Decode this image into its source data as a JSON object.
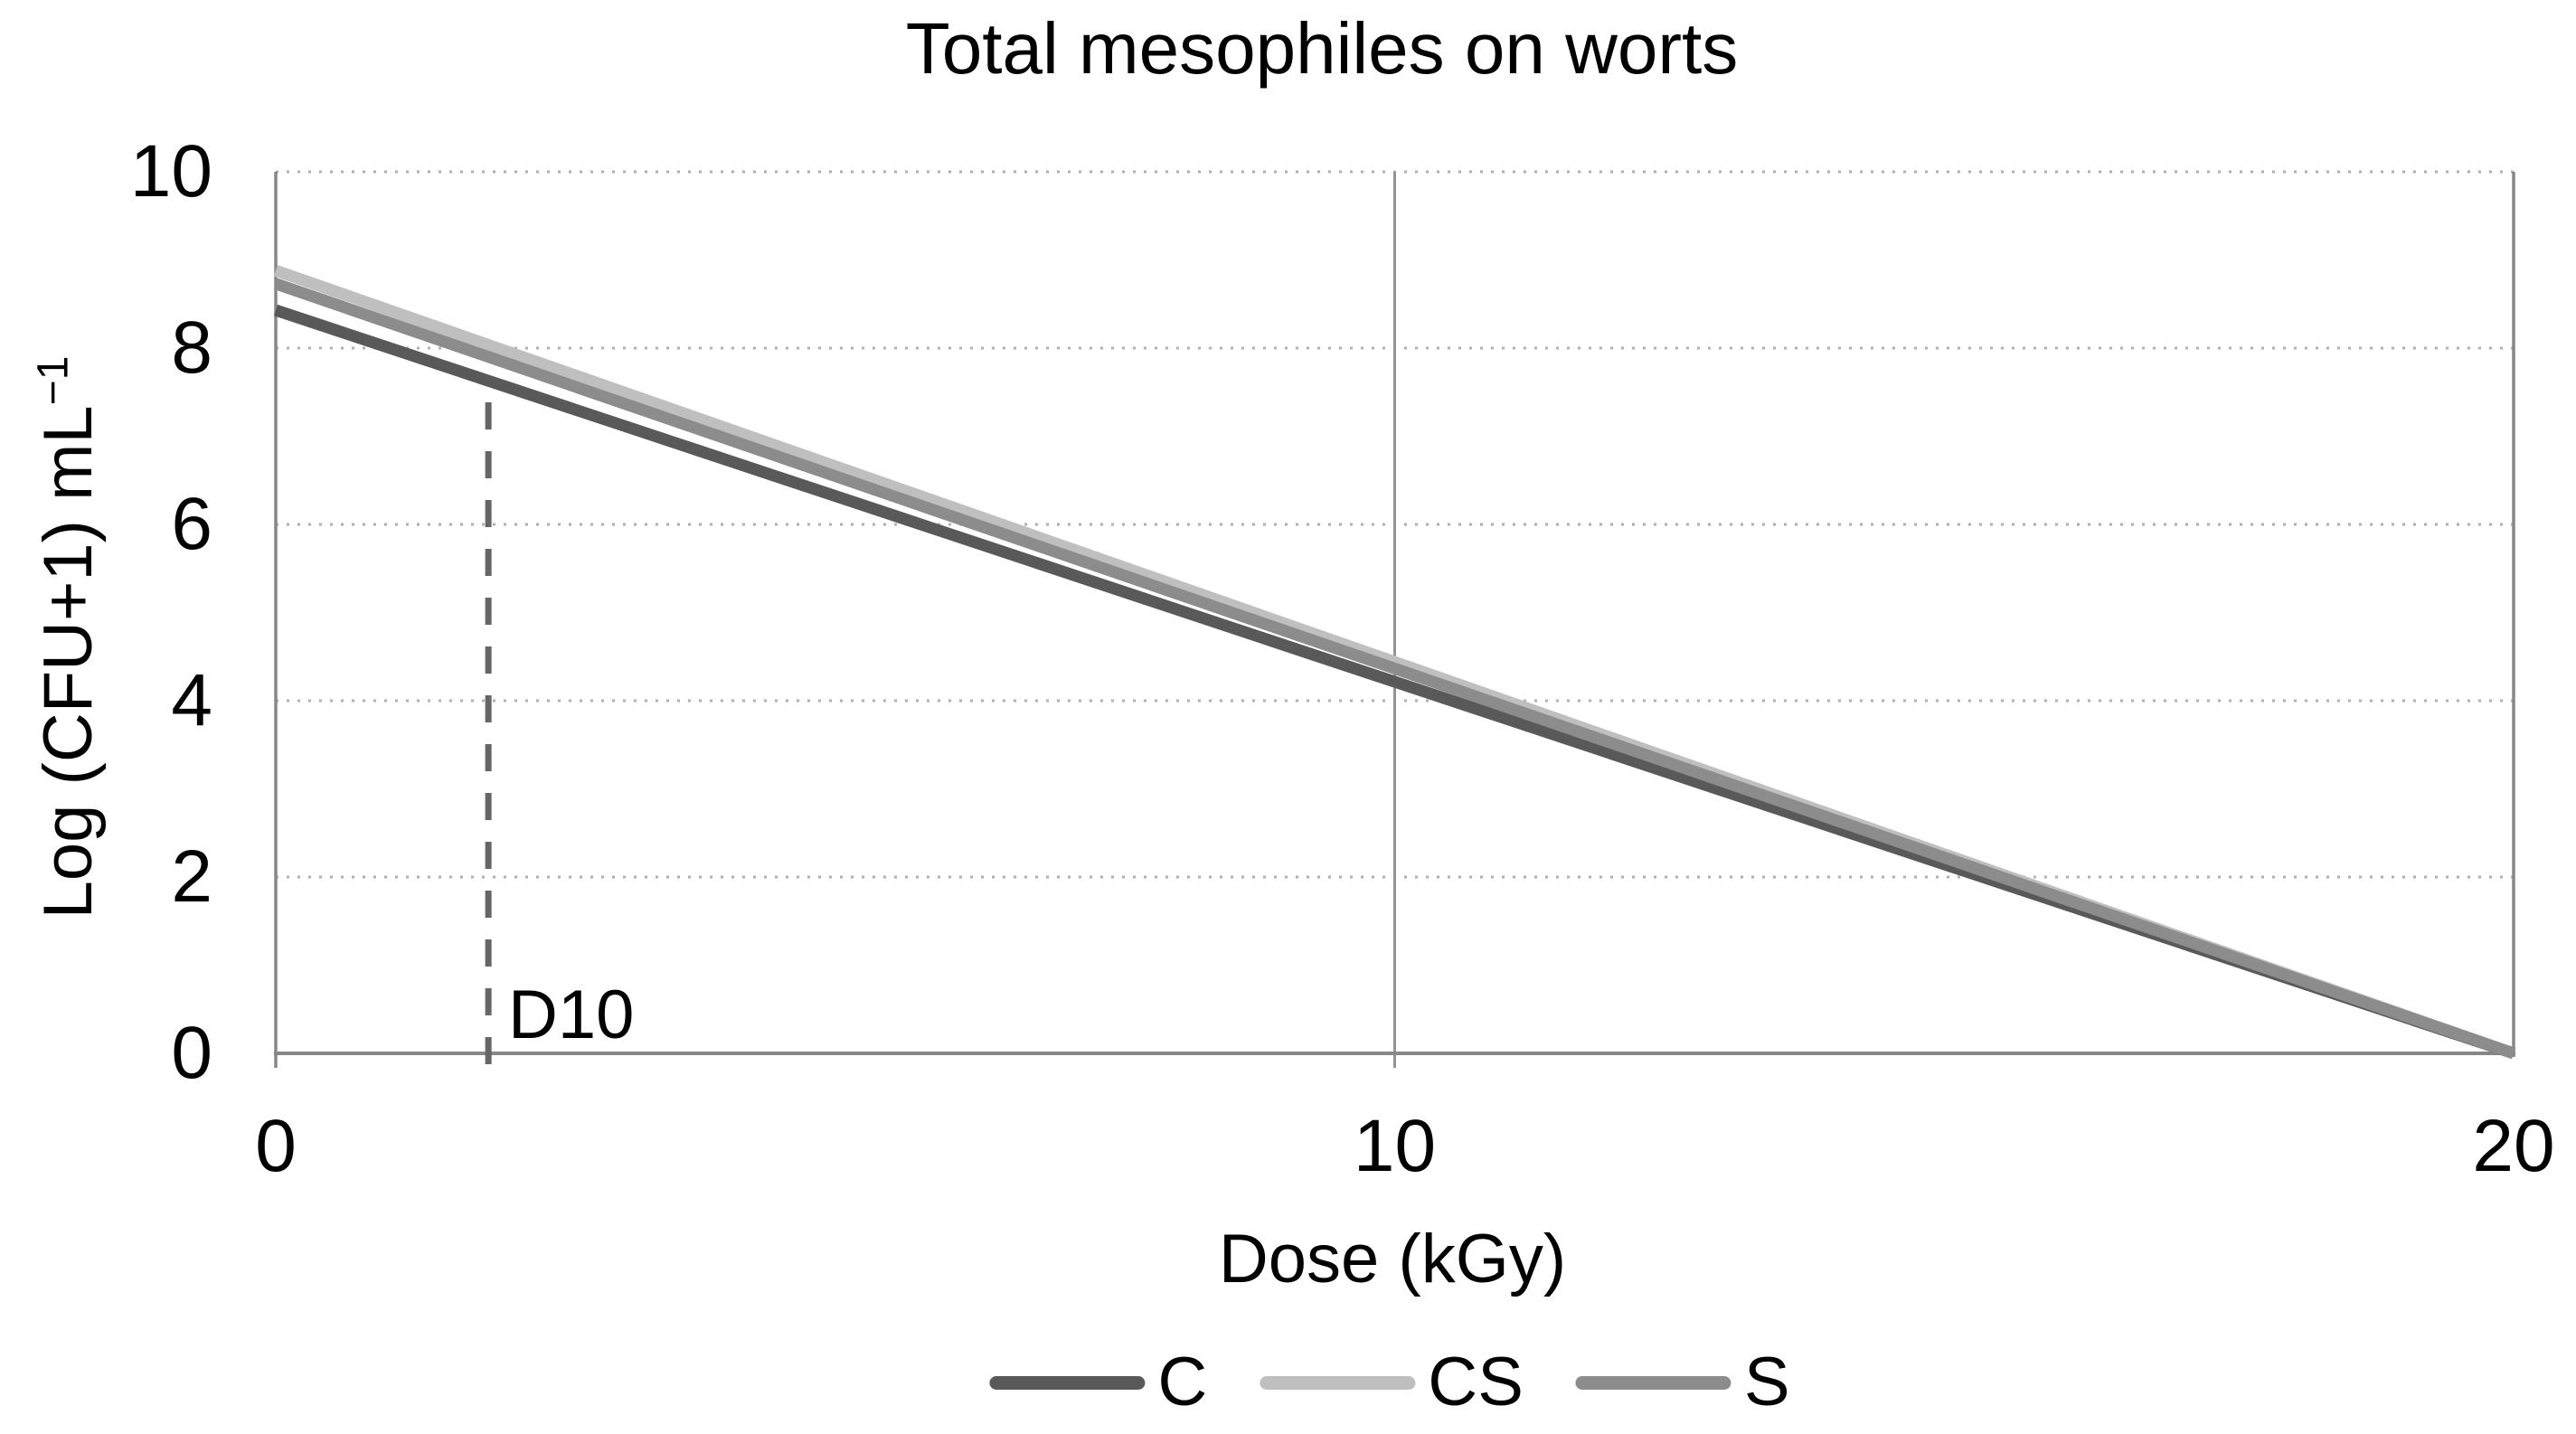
{
  "chart_data": {
    "type": "line",
    "title": "Total mesophiles on worts",
    "xlabel": "Dose (kGy)",
    "ylabel": "Log (CFU+1) mL−1",
    "xlim": [
      0,
      20
    ],
    "ylim": [
      0,
      10
    ],
    "xticks": [
      0,
      10,
      20
    ],
    "yticks": [
      0,
      2,
      4,
      6,
      8,
      10
    ],
    "grid": {
      "horizontal": "dotted at 2,4,6,8,10",
      "vertical": "solid at 10"
    },
    "legend_position": "bottom center",
    "series": [
      {
        "name": "C",
        "color": "#595959",
        "x": [
          0,
          20
        ],
        "y": [
          8.43,
          0
        ]
      },
      {
        "name": "CS",
        "color": "#bfbfbf",
        "x": [
          0,
          20
        ],
        "y": [
          8.88,
          0
        ]
      },
      {
        "name": "S",
        "color": "#8c8c8c",
        "x": [
          0,
          20
        ],
        "y": [
          8.73,
          0
        ]
      }
    ],
    "annotation": {
      "label": "D10",
      "x": 1.9,
      "y_top": 7.55,
      "style": "dashed vertical line",
      "color": "#666666"
    }
  },
  "y_axis_label": {
    "main": "Log (CFU+1) mL",
    "sup": "−1"
  },
  "colors": {
    "axis": "#878787",
    "vertical_gridline": "#949494",
    "dotted_gridline": "#b0b0b0",
    "text": "#000000",
    "background": "#ffffff"
  }
}
